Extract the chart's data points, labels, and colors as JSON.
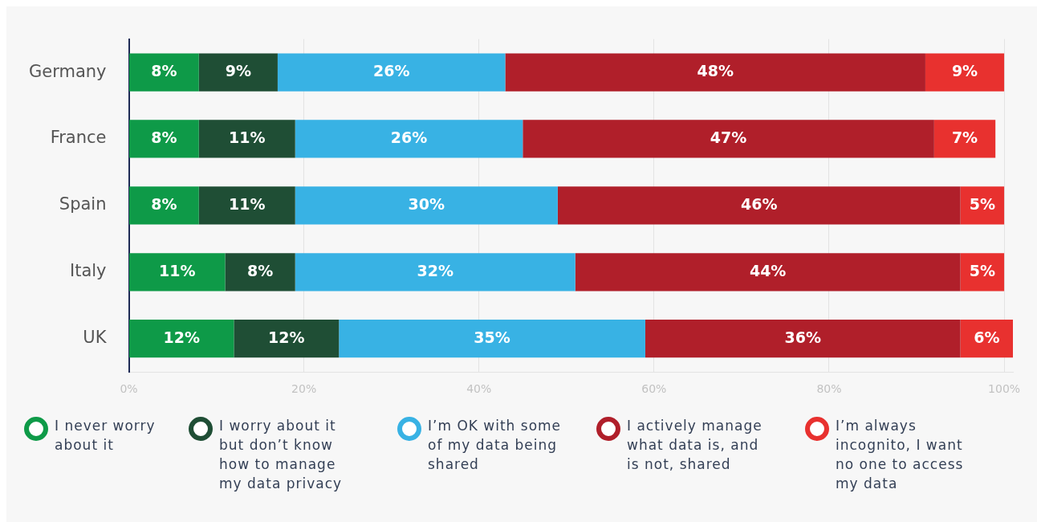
{
  "chart_data": {
    "type": "bar",
    "orientation": "horizontal",
    "stacked": true,
    "categories": [
      "Germany",
      "France",
      "Spain",
      "Italy",
      "UK"
    ],
    "series": [
      {
        "name": "I never worry about it",
        "color": "#0e9a48",
        "values": [
          8,
          8,
          8,
          11,
          12
        ],
        "value_labels": [
          "8%",
          "8%",
          "8%",
          "11%",
          "12%"
        ]
      },
      {
        "name": "I worry about it but don’t know how to manage my data privacy",
        "color": "#1f4e35",
        "values": [
          9,
          11,
          11,
          8,
          12
        ],
        "value_labels": [
          "9%",
          "11%",
          "11%",
          "8%",
          "12%"
        ]
      },
      {
        "name": "I’m OK with some of my data being shared",
        "color": "#38b2e4",
        "values": [
          26,
          26,
          30,
          32,
          35
        ],
        "value_labels": [
          "26%",
          "26%",
          "30%",
          "32%",
          "35%"
        ]
      },
      {
        "name": "I actively manage what data is, and is not, shared",
        "color": "#b01f2a",
        "values": [
          48,
          47,
          46,
          44,
          36
        ],
        "value_labels": [
          "48%",
          "47%",
          "46%",
          "44%",
          "36%"
        ]
      },
      {
        "name": "I’m always incognito, I want no one to access my data",
        "color": "#e8312f",
        "values": [
          9,
          7,
          5,
          5,
          6
        ],
        "value_labels": [
          "9%",
          "7%",
          "5%",
          "5%",
          "6%"
        ]
      }
    ],
    "xlim": [
      0,
      101
    ],
    "xticks": [
      {
        "value": 0,
        "label": "0%"
      },
      {
        "value": 20,
        "label": "20%"
      },
      {
        "value": 40,
        "label": "40%"
      },
      {
        "value": 60,
        "label": "60%"
      },
      {
        "value": 80,
        "label": "80%"
      },
      {
        "value": 100,
        "label": "100%"
      }
    ],
    "grid": "x",
    "legend": "bottom"
  }
}
